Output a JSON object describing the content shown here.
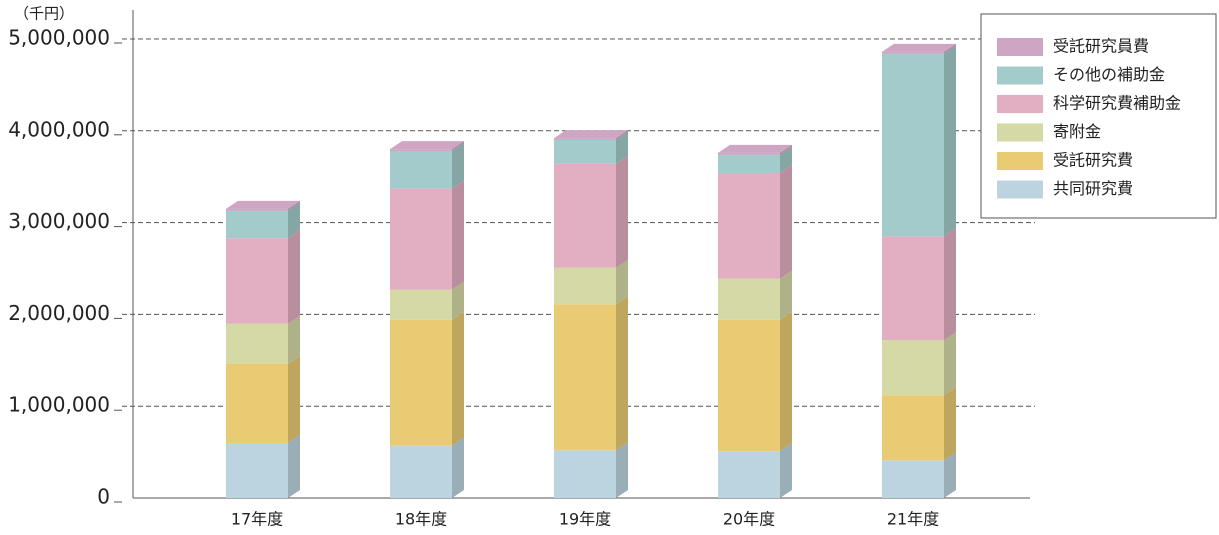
{
  "chart_data": {
    "type": "bar3d_stacked",
    "y_unit": "（千円）",
    "categories": [
      "17年度",
      "18年度",
      "19年度",
      "20年度",
      "21年度"
    ],
    "series": [
      {
        "name": "共同研究費",
        "color": "#bcd4e0",
        "values": [
          600000,
          570000,
          520000,
          510000,
          410000
        ]
      },
      {
        "name": "受託研究費",
        "color": "#e9cb73",
        "values": [
          860000,
          1370000,
          1590000,
          1430000,
          710000
        ]
      },
      {
        "name": "寄附金",
        "color": "#d5d9a6",
        "values": [
          440000,
          330000,
          400000,
          450000,
          600000
        ]
      },
      {
        "name": "科学研究費補助金",
        "color": "#e2aec2",
        "values": [
          930000,
          1100000,
          1130000,
          1150000,
          1130000
        ]
      },
      {
        "name": "その他の補助金",
        "color": "#a3cbcb",
        "values": [
          300000,
          410000,
          260000,
          200000,
          1990000
        ]
      },
      {
        "name": "受託研究員費",
        "color": "#cfa5c4",
        "values": [
          20000,
          20000,
          20000,
          20000,
          20000
        ]
      }
    ],
    "ylim": [
      0,
      5000000
    ],
    "yticks": [
      0,
      {
        "value": 1000000,
        "label": "1,000,000"
      },
      {
        "value": 2000000,
        "label": "2,000,000"
      },
      {
        "value": 3000000,
        "label": "3,000,000"
      },
      {
        "value": 4000000,
        "label": "4,000,000"
      },
      {
        "value": 5000000,
        "label": "5,000,000"
      }
    ],
    "grid": true,
    "legend": "upper right"
  }
}
